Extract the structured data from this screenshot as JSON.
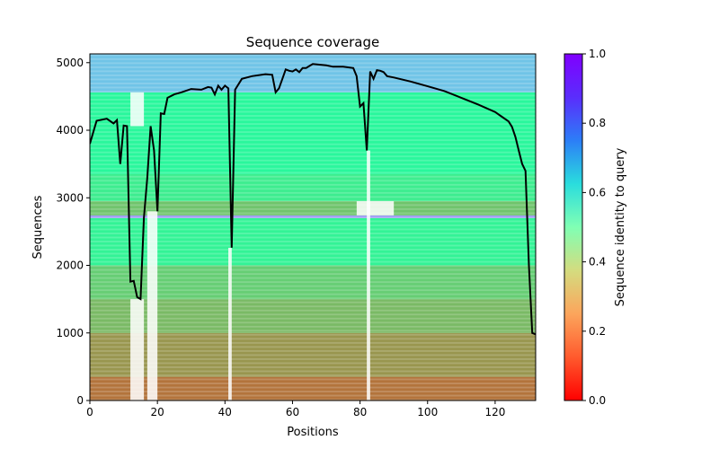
{
  "chart_data": {
    "type": "heatmap",
    "title": "Sequence coverage",
    "xlabel": "Positions",
    "ylabel": "Sequences",
    "xlim": [
      0,
      132
    ],
    "ylim": [
      0,
      5130
    ],
    "x_ticks": [
      0,
      20,
      40,
      60,
      80,
      100,
      120
    ],
    "y_ticks": [
      0,
      1000,
      2000,
      3000,
      4000,
      5000
    ],
    "grid": false,
    "colorbar": {
      "label": "Sequence identity to query",
      "colormap": "rainbow_r",
      "range": [
        0.0,
        1.0
      ],
      "ticks": [
        0.0,
        0.2,
        0.4,
        0.6,
        0.8,
        1.0
      ],
      "tick_labels": [
        "0.0",
        "0.2",
        "0.4",
        "0.6",
        "0.8",
        "1.0"
      ]
    },
    "heatmap_bands": [
      {
        "from": 0,
        "to": 350,
        "identity": 0.15
      },
      {
        "from": 350,
        "to": 1000,
        "identity": 0.2
      },
      {
        "from": 1000,
        "to": 1500,
        "identity": 0.26
      },
      {
        "from": 1500,
        "to": 2000,
        "identity": 0.3
      },
      {
        "from": 2000,
        "to": 2700,
        "identity": 0.4
      },
      {
        "from": 2700,
        "to": 2740,
        "identity": 0.8
      },
      {
        "from": 2740,
        "to": 2950,
        "identity": 0.28
      },
      {
        "from": 2950,
        "to": 3350,
        "identity": 0.38
      },
      {
        "from": 3350,
        "to": 4560,
        "identity": 0.42
      },
      {
        "from": 4560,
        "to": 5130,
        "identity": 0.72
      }
    ],
    "coverage_line": {
      "color": "#000000",
      "x": [
        0,
        2,
        5,
        7,
        8,
        9,
        10,
        11,
        12,
        13,
        14,
        15,
        16,
        17,
        18,
        19,
        20,
        21,
        22,
        23,
        25,
        27,
        30,
        33,
        35,
        36,
        37,
        38,
        39,
        40,
        41,
        42,
        43,
        45,
        48,
        52,
        54,
        55,
        56,
        57,
        58,
        59,
        60,
        61,
        62,
        63,
        64,
        65,
        66,
        70,
        72,
        75,
        78,
        79,
        80,
        81,
        82,
        83,
        84,
        85,
        86,
        87,
        88,
        90,
        95,
        100,
        105,
        110,
        115,
        120,
        122,
        124,
        125,
        126,
        127,
        128,
        129,
        130,
        131,
        132
      ],
      "y": [
        3800,
        4140,
        4170,
        4100,
        4150,
        3500,
        4070,
        4060,
        1760,
        1770,
        1530,
        1500,
        2700,
        3300,
        4060,
        3700,
        2800,
        4250,
        4240,
        4480,
        4530,
        4560,
        4610,
        4600,
        4640,
        4630,
        4530,
        4660,
        4600,
        4660,
        4620,
        2260,
        4600,
        4760,
        4800,
        4830,
        4820,
        4560,
        4620,
        4760,
        4900,
        4880,
        4870,
        4900,
        4860,
        4920,
        4920,
        4950,
        4980,
        4960,
        4940,
        4940,
        4920,
        4800,
        4350,
        4400,
        3700,
        4870,
        4760,
        4890,
        4880,
        4860,
        4800,
        4780,
        4720,
        4650,
        4580,
        4480,
        4380,
        4270,
        4200,
        4130,
        4050,
        3900,
        3700,
        3500,
        3400,
        2000,
        1000,
        980
      ]
    },
    "gap_columns": [
      {
        "x_from": 12,
        "x_to": 16,
        "y_from": 0,
        "y_to": 1500
      },
      {
        "x_from": 12,
        "x_to": 16,
        "y_from": 4060,
        "y_to": 4560
      },
      {
        "x_from": 17,
        "x_to": 20,
        "y_from": 0,
        "y_to": 2800
      },
      {
        "x_from": 41,
        "x_to": 42,
        "y_from": 0,
        "y_to": 2260
      },
      {
        "x_from": 82,
        "x_to": 83,
        "y_from": 0,
        "y_to": 3700
      },
      {
        "x_from": 79,
        "x_to": 90,
        "y_from": 2740,
        "y_to": 2950
      }
    ]
  }
}
